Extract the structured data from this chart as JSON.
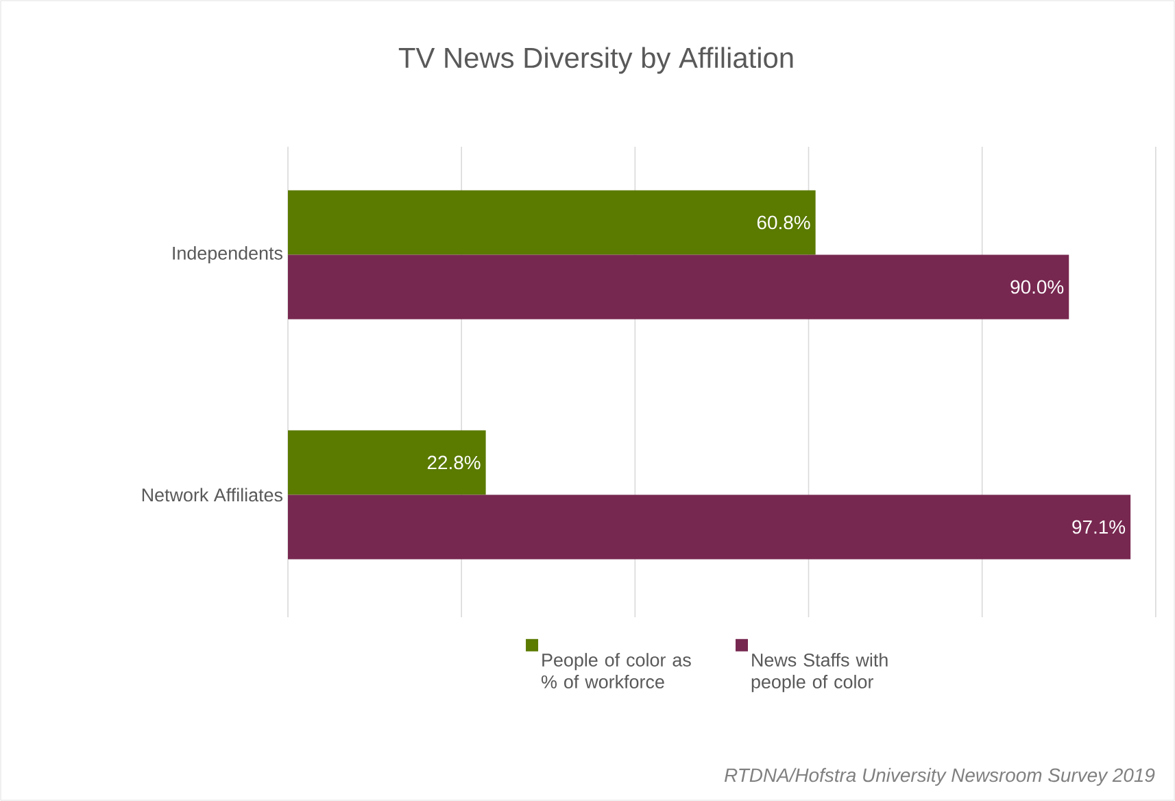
{
  "chart_data": {
    "type": "bar",
    "orientation": "horizontal",
    "title": "TV News Diversity by Affiliation",
    "categories": [
      "Independents",
      "Network Affiliates"
    ],
    "series": [
      {
        "name": "People of color as % of workforce",
        "color": "#5a7a00",
        "values": [
          60.8,
          22.8
        ],
        "value_labels": [
          "60.8%",
          "22.8%"
        ]
      },
      {
        "name": "News Staffs with people of color",
        "color": "#772850",
        "values": [
          90.0,
          97.1
        ],
        "value_labels": [
          "90.0%",
          "97.1%"
        ]
      }
    ],
    "grid": "x",
    "legend": "bottom",
    "tick_labels": "y",
    "annotations": [
      "RTDNA/Hofstra University Newsroom Survey 2019"
    ]
  }
}
